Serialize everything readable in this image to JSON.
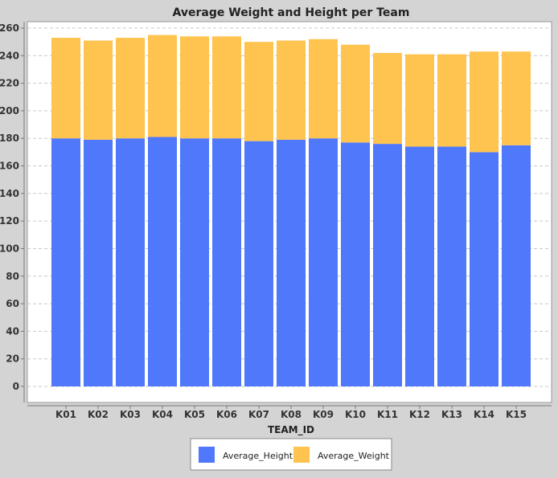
{
  "chart_data": {
    "type": "bar",
    "stacked": true,
    "title": "Average Weight and Height per Team",
    "xlabel": "TEAM_ID",
    "ylabel": "",
    "ylim": [
      0,
      260
    ],
    "yticks": [
      0,
      20,
      40,
      60,
      80,
      100,
      120,
      140,
      160,
      180,
      200,
      220,
      240,
      260
    ],
    "grid": true,
    "legend_position": "bottom",
    "categories": [
      "K01",
      "K02",
      "K03",
      "K04",
      "K05",
      "K06",
      "K07",
      "K08",
      "K09",
      "K10",
      "K11",
      "K12",
      "K13",
      "K14",
      "K15"
    ],
    "series": [
      {
        "name": "Average_Height",
        "color": "#5078fa",
        "values": [
          180,
          179,
          180,
          181,
          180,
          180,
          178,
          179,
          180,
          177,
          176,
          174,
          174,
          170,
          175
        ]
      },
      {
        "name": "Average_Weight",
        "color": "#ffc450",
        "values": [
          73,
          72,
          73,
          74,
          74,
          74,
          72,
          72,
          72,
          71,
          66,
          67,
          67,
          73,
          68
        ]
      }
    ]
  }
}
